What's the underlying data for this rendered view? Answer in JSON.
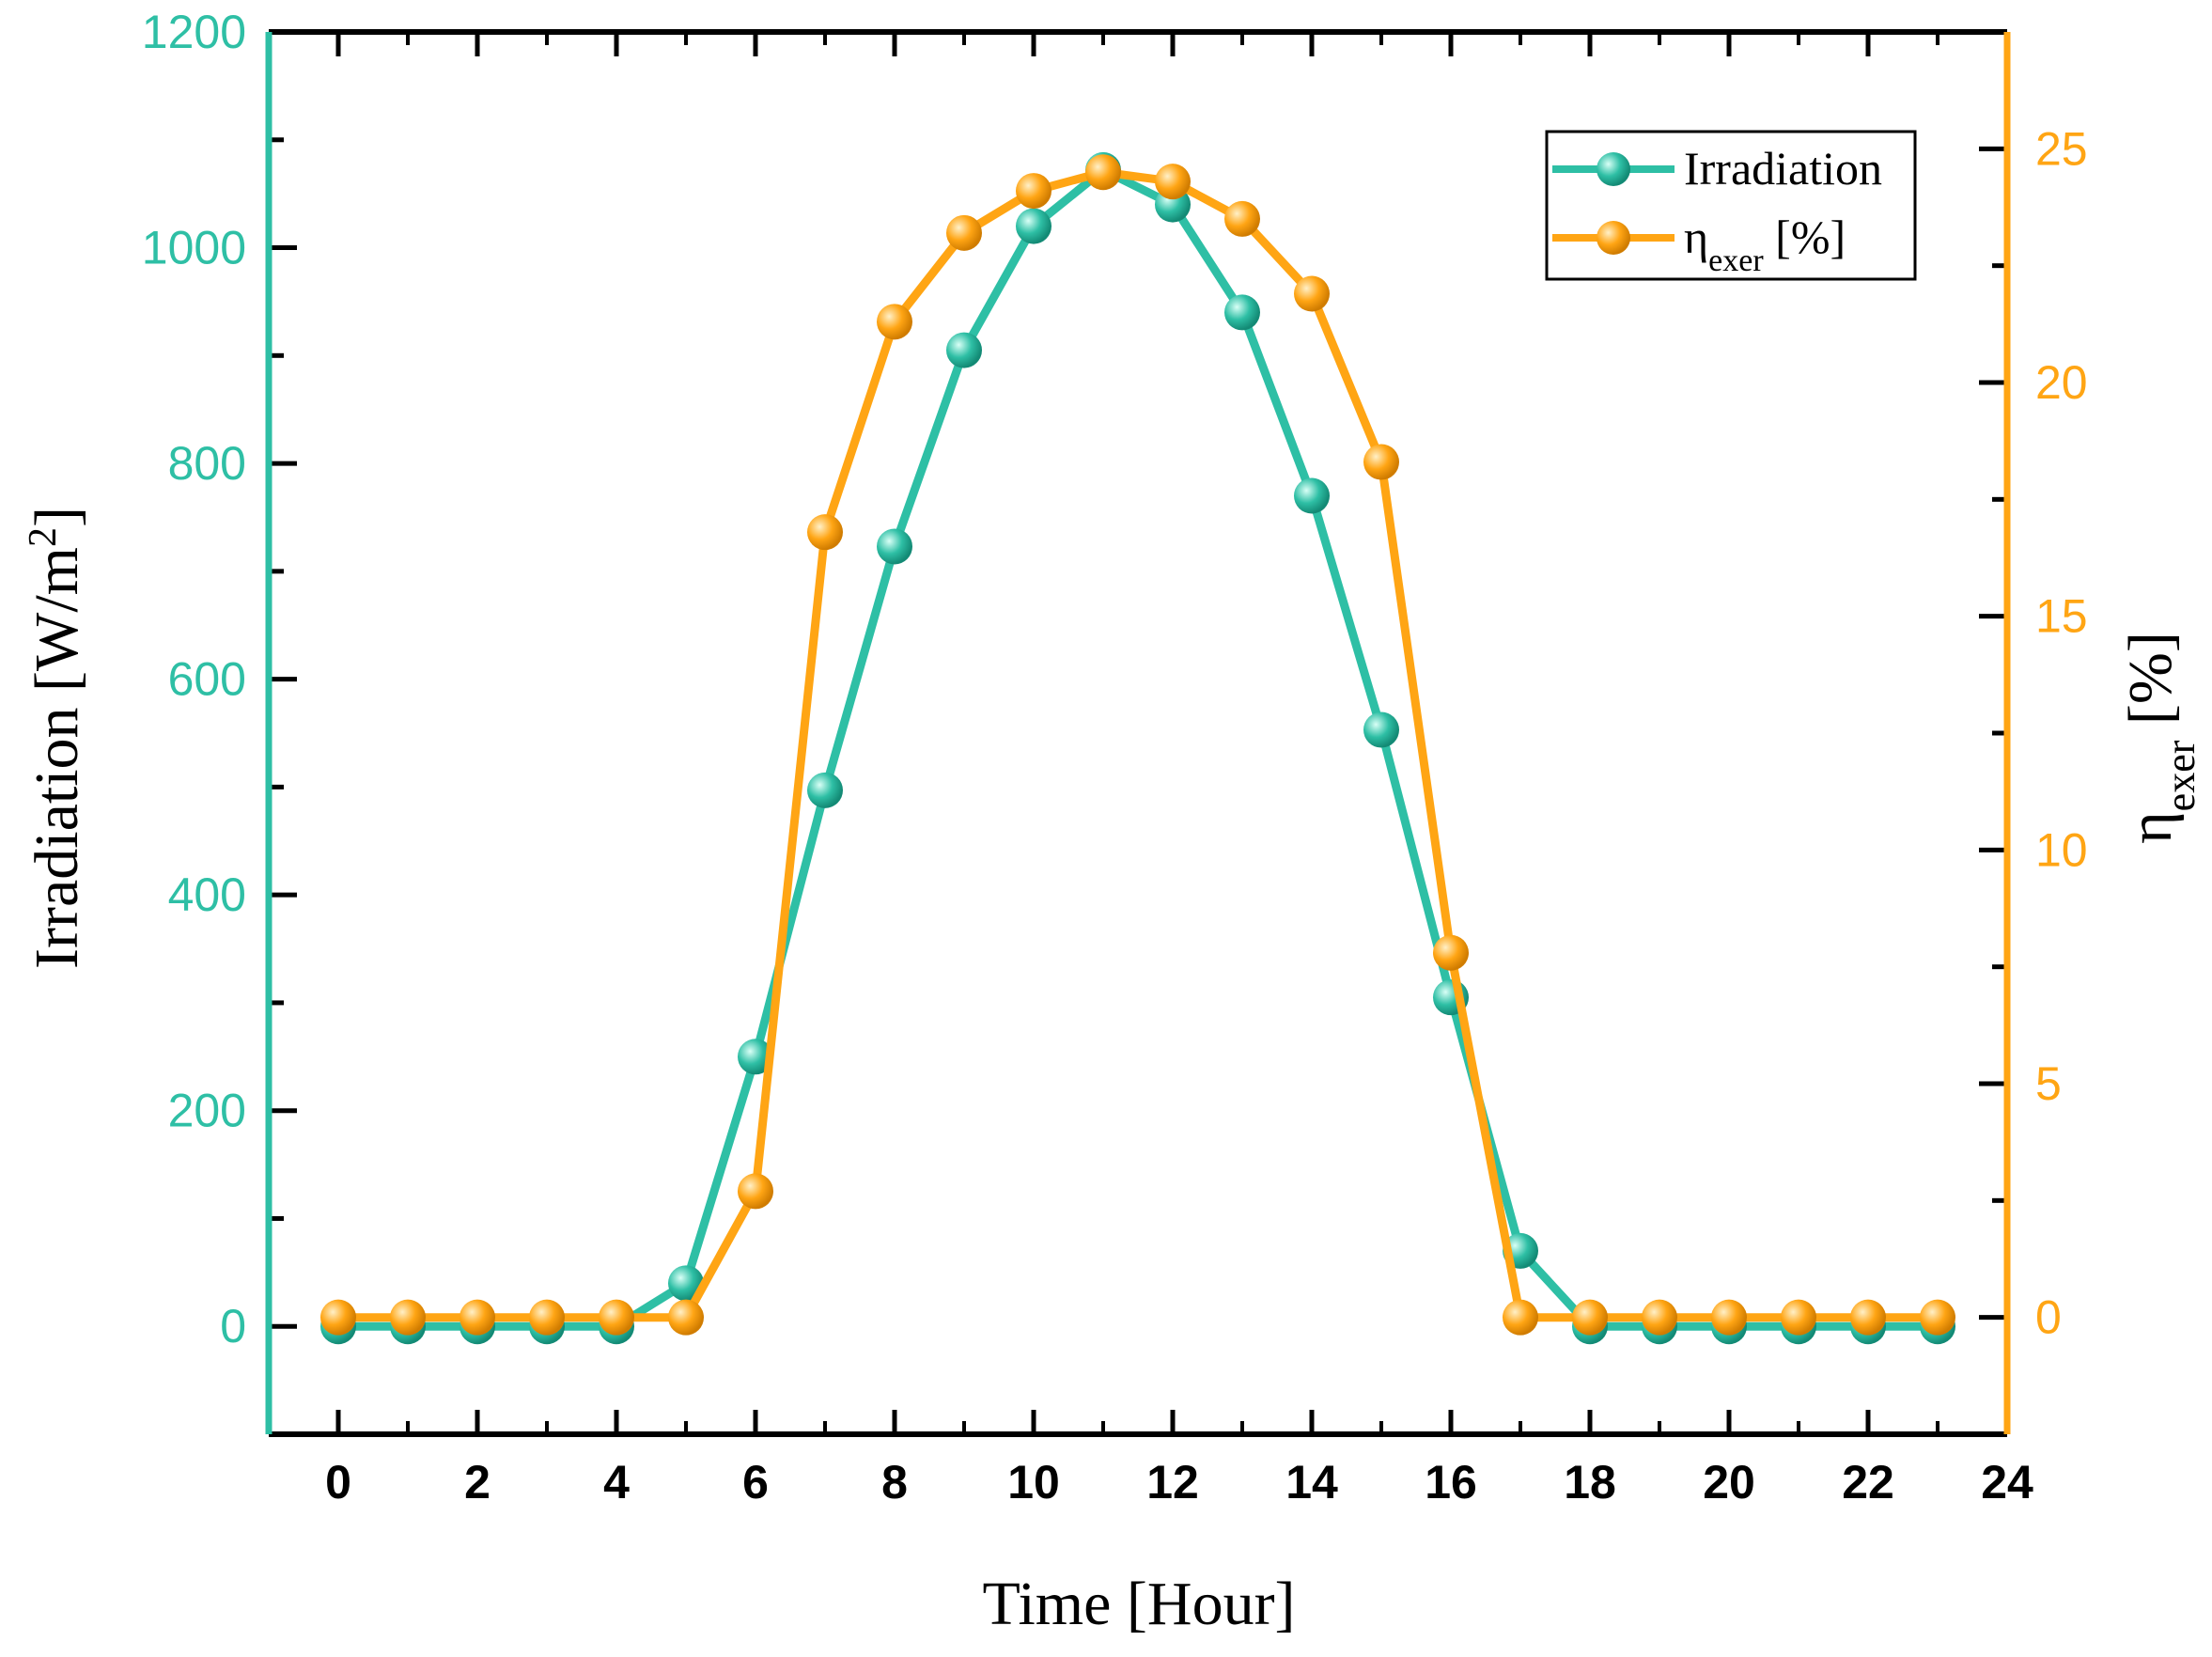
{
  "chart_data": {
    "type": "line",
    "x": [
      0,
      1,
      2,
      3,
      4,
      5,
      6,
      7,
      8,
      9,
      10,
      11,
      12,
      13,
      14,
      15,
      16,
      17,
      18,
      19,
      20,
      21,
      22,
      23
    ],
    "xlim": [
      -1,
      24
    ],
    "xticks": [
      "0",
      "2",
      "4",
      "6",
      "8",
      "10",
      "12",
      "14",
      "16",
      "18",
      "20",
      "22",
      "24"
    ],
    "xlabel": "Time [Hour]",
    "colors": {
      "irradiation": "#2ebfa5",
      "efficiency": "#ffa514",
      "frame": "#000000"
    },
    "left_axis": {
      "label": "Irradiation [W/m",
      "label_sup": "2",
      "label_close": "]",
      "ylim": [
        -100,
        1200
      ],
      "ticks": [
        "0",
        "200",
        "400",
        "600",
        "800",
        "1000",
        "1200"
      ]
    },
    "right_axis": {
      "label_symbol": "η",
      "label_sub": "exer",
      "label_rest": " [%]",
      "ylim": [
        -2.5,
        27.5
      ],
      "ticks": [
        "0",
        "5",
        "10",
        "15",
        "20",
        "25"
      ]
    },
    "series": [
      {
        "name": "Irradiation",
        "axis": "left",
        "values": [
          0,
          0,
          0,
          0,
          0,
          40,
          250,
          497,
          723,
          905,
          1020,
          1072,
          1040,
          940,
          770,
          553,
          305,
          70,
          0,
          0,
          0,
          0,
          0,
          0
        ]
      },
      {
        "name": "η",
        "name_sub": "exer",
        "name_rest": " [%]",
        "axis": "right",
        "values": [
          0,
          0,
          0,
          0,
          0,
          0,
          2.7,
          16.8,
          21.3,
          23.2,
          24.1,
          24.5,
          24.3,
          23.5,
          21.9,
          18.3,
          7.8,
          0,
          0,
          0,
          0,
          0,
          0,
          0
        ]
      }
    ],
    "legend_position": "top-right"
  }
}
